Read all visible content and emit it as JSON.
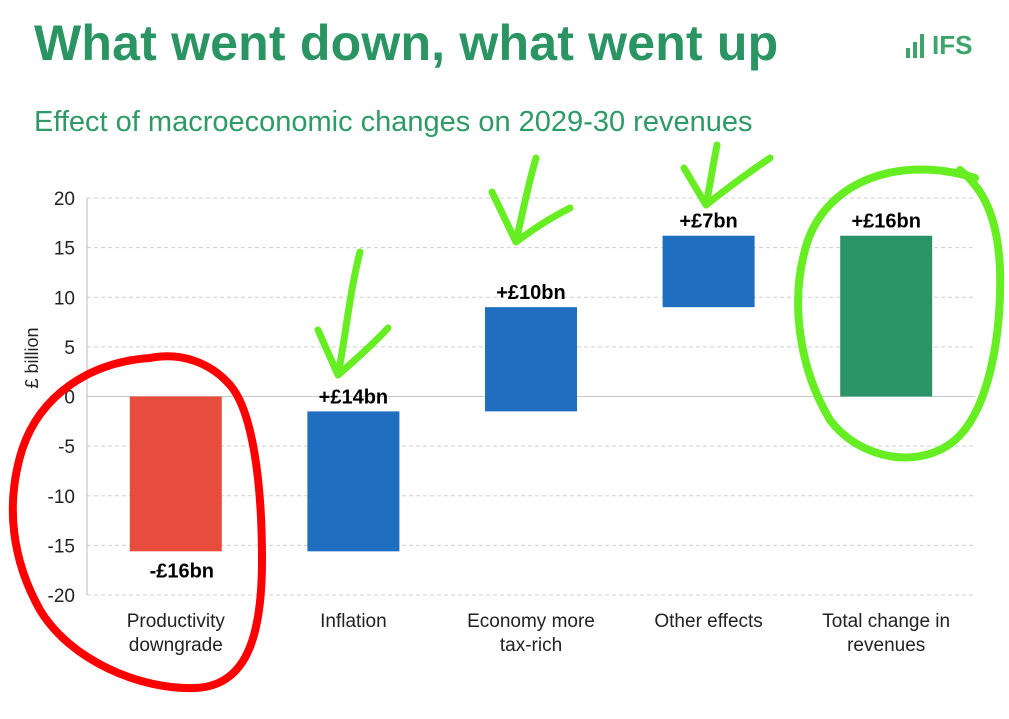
{
  "header": {
    "title": "What went down, what went up",
    "subtitle": "Effect of macroeconomic changes on 2029-30 revenues",
    "logo_text": "IFS"
  },
  "chart_data": {
    "type": "bar",
    "subtype": "waterfall",
    "ylabel": "£ billion",
    "ylim": [
      -20,
      20
    ],
    "yticks": [
      20,
      15,
      10,
      5,
      0,
      -5,
      -10,
      -15,
      -20
    ],
    "grid": true,
    "categories": [
      [
        "Productivity",
        "downgrade"
      ],
      [
        "Inflation"
      ],
      [
        "Economy more",
        "tax-rich"
      ],
      [
        "Other effects"
      ],
      [
        "Total change in",
        "revenues"
      ]
    ],
    "bars": [
      {
        "start": 0,
        "end": -15.6,
        "label": "-£16bn",
        "color": "#e84c3d"
      },
      {
        "start": -15.6,
        "end": -1.5,
        "label": "+£14bn",
        "color": "#1f6ebf"
      },
      {
        "start": -1.5,
        "end": 9.0,
        "label": "+£10bn",
        "color": "#1f6ebf"
      },
      {
        "start": 9.0,
        "end": 16.2,
        "label": "+£7bn",
        "color": "#1f6ebf"
      },
      {
        "start": 0,
        "end": 16.2,
        "label": "+£16bn",
        "color": "#2a9466"
      }
    ],
    "colors": {
      "negative": "#e84c3d",
      "positive": "#1f6ebf",
      "total": "#2a9466",
      "annotation_red": "#ff0000",
      "annotation_green": "#66ee22"
    }
  }
}
